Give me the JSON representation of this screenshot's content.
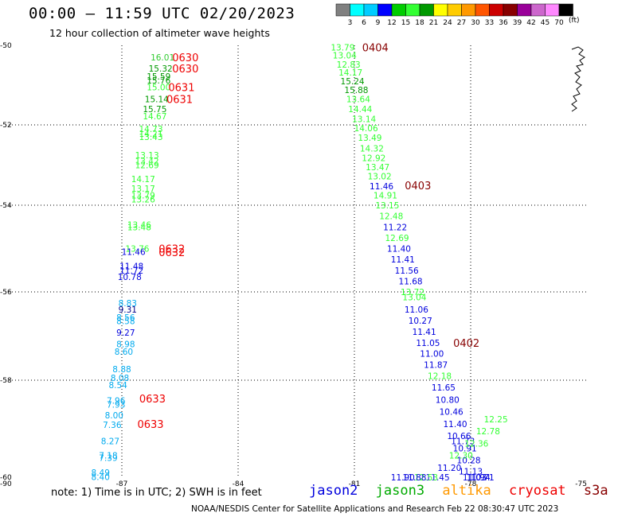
{
  "header": {
    "title": "00:00 – 11:59 UTC 02/20/2023",
    "subtitle": "12 hour collection of altimeter wave heights"
  },
  "footer": {
    "note": "note: 1) Time is in UTC; 2) SWH is in feet",
    "credit": "NOAA/NESDIS Center for Satellite Applications and Research    Feb 22 08:30:47 UTC 2023"
  },
  "satellites": [
    {
      "name": "jason2",
      "color": "#0000dd"
    },
    {
      "name": "jason3",
      "color": "#00aa00"
    },
    {
      "name": "altika",
      "color": "#ff9900"
    },
    {
      "name": "cryosat",
      "color": "#ee0000"
    },
    {
      "name": "s3a",
      "color": "#880000"
    }
  ],
  "colorbar": {
    "unit": "(ft)",
    "ticks": [
      "3",
      "6",
      "9",
      "12",
      "15",
      "18",
      "21",
      "24",
      "27",
      "30",
      "33",
      "36",
      "39",
      "42",
      "45",
      "70"
    ],
    "colors": [
      "#808080",
      "#00ffff",
      "#00ccff",
      "#0000ff",
      "#00cc00",
      "#33ff33",
      "#009900",
      "#ffff00",
      "#ffcc00",
      "#ff9900",
      "#ff5500",
      "#cc0000",
      "#880000",
      "#990099",
      "#cc66cc",
      "#ff88ff",
      "#000000"
    ]
  },
  "chart_data": {
    "type": "scatter",
    "xlim": [
      -90,
      -75
    ],
    "ylim": [
      -60,
      -50
    ],
    "x_ticks": [
      "-90",
      "-87",
      "-84",
      "-81",
      "-78",
      "-75"
    ],
    "y_ticks": [
      "-50",
      "-52",
      "-54",
      "-56",
      "-58",
      "-60"
    ],
    "points": [
      {
        "lon": -85.95,
        "lat": -50.3,
        "v": "16.01",
        "c": "#33cc33"
      },
      {
        "lon": -86.0,
        "lat": -50.58,
        "v": "15.32",
        "c": "#009900"
      },
      {
        "lon": -86.05,
        "lat": -50.78,
        "v": "15.59",
        "c": "#009900"
      },
      {
        "lon": -86.05,
        "lat": -50.88,
        "v": "15.76",
        "c": "#009900"
      },
      {
        "lon": -86.05,
        "lat": -51.05,
        "v": "15.00",
        "c": "#33ff33"
      },
      {
        "lon": -86.1,
        "lat": -51.35,
        "v": "15.14",
        "c": "#009900"
      },
      {
        "lon": -86.15,
        "lat": -51.6,
        "v": "15.75",
        "c": "#009900"
      },
      {
        "lon": -86.15,
        "lat": -51.78,
        "v": "14.67",
        "c": "#33ff33"
      },
      {
        "lon": -86.25,
        "lat": -52.1,
        "v": "14.73",
        "c": "#33ff33"
      },
      {
        "lon": -86.25,
        "lat": -52.22,
        "v": "14.21",
        "c": "#33ff33"
      },
      {
        "lon": -86.25,
        "lat": -52.3,
        "v": "13.43",
        "c": "#33ff33"
      },
      {
        "lon": -86.35,
        "lat": -52.75,
        "v": "13.13",
        "c": "#33ff33"
      },
      {
        "lon": -86.35,
        "lat": -52.9,
        "v": "13.42",
        "c": "#33ff33"
      },
      {
        "lon": -86.35,
        "lat": -53.0,
        "v": "12.69",
        "c": "#33ff33"
      },
      {
        "lon": -86.45,
        "lat": -53.35,
        "v": "14.17",
        "c": "#33ff33"
      },
      {
        "lon": -86.45,
        "lat": -53.58,
        "v": "13.17",
        "c": "#33ff33"
      },
      {
        "lon": -86.45,
        "lat": -53.75,
        "v": "13.79",
        "c": "#33ff33"
      },
      {
        "lon": -86.45,
        "lat": -53.85,
        "v": "13.26",
        "c": "#33ff33"
      },
      {
        "lon": -86.55,
        "lat": -54.45,
        "v": "13.46",
        "c": "#33ff33"
      },
      {
        "lon": -86.55,
        "lat": -54.5,
        "v": "13.48",
        "c": "#33ff33"
      },
      {
        "lon": -86.6,
        "lat": -55.0,
        "v": "13.76",
        "c": "#33ff33"
      },
      {
        "lon": -86.7,
        "lat": -55.07,
        "v": "11.46",
        "c": "#0000dd"
      },
      {
        "lon": -86.75,
        "lat": -55.4,
        "v": "11.48",
        "c": "#0000dd"
      },
      {
        "lon": -86.75,
        "lat": -55.5,
        "v": "11.72",
        "c": "#0000dd"
      },
      {
        "lon": -86.8,
        "lat": -55.65,
        "v": "10.78",
        "c": "#0000dd"
      },
      {
        "lon": -86.85,
        "lat": -56.25,
        "v": "8.83",
        "c": "#00aaee"
      },
      {
        "lon": -86.85,
        "lat": -56.4,
        "v": "9.31",
        "c": "#000088"
      },
      {
        "lon": -86.9,
        "lat": -56.58,
        "v": "8.56",
        "c": "#00aaee"
      },
      {
        "lon": -86.9,
        "lat": -56.66,
        "v": "8.58",
        "c": "#00aaee"
      },
      {
        "lon": -86.9,
        "lat": -56.92,
        "v": "9.27",
        "c": "#0000dd"
      },
      {
        "lon": -86.9,
        "lat": -57.18,
        "v": "8.98",
        "c": "#00aaee"
      },
      {
        "lon": -86.95,
        "lat": -57.35,
        "v": "8.60",
        "c": "#00aaee"
      },
      {
        "lon": -87.0,
        "lat": -57.75,
        "v": "8.88",
        "c": "#00aaee"
      },
      {
        "lon": -87.05,
        "lat": -57.95,
        "v": "8.08",
        "c": "#00aaee"
      },
      {
        "lon": -87.1,
        "lat": -58.1,
        "v": "8.54",
        "c": "#00aaee"
      },
      {
        "lon": -87.15,
        "lat": -58.42,
        "v": "7.96",
        "c": "#00aaee"
      },
      {
        "lon": -87.15,
        "lat": -58.5,
        "v": "7.93",
        "c": "#00aaee"
      },
      {
        "lon": -87.2,
        "lat": -58.72,
        "v": "8.00",
        "c": "#00aaee"
      },
      {
        "lon": -87.25,
        "lat": -58.92,
        "v": "7.36",
        "c": "#00aaee"
      },
      {
        "lon": -87.3,
        "lat": -59.25,
        "v": "8.27",
        "c": "#00aaee"
      },
      {
        "lon": -87.35,
        "lat": -59.55,
        "v": "7.18",
        "c": "#00aaee"
      },
      {
        "lon": -87.35,
        "lat": -59.6,
        "v": "7.39",
        "c": "#00aaee"
      },
      {
        "lon": -87.55,
        "lat": -59.9,
        "v": "8.49",
        "c": "#00aaee"
      },
      {
        "lon": -87.55,
        "lat": -59.99,
        "v": "8.40",
        "c": "#00aaee"
      },
      {
        "lon": -81.3,
        "lat": -50.05,
        "v": "13.79",
        "c": "#33ff33"
      },
      {
        "lon": -81.25,
        "lat": -50.25,
        "v": "13.04",
        "c": "#33ff33"
      },
      {
        "lon": -81.15,
        "lat": -50.48,
        "v": "12.83",
        "c": "#33ff33"
      },
      {
        "lon": -81.1,
        "lat": -50.68,
        "v": "14.17",
        "c": "#33ff33"
      },
      {
        "lon": -81.05,
        "lat": -50.9,
        "v": "15.24",
        "c": "#009900"
      },
      {
        "lon": -80.95,
        "lat": -51.12,
        "v": "15.88",
        "c": "#009900"
      },
      {
        "lon": -80.9,
        "lat": -51.35,
        "v": "13.64",
        "c": "#33ff33"
      },
      {
        "lon": -80.85,
        "lat": -51.6,
        "v": "14.44",
        "c": "#33ff33"
      },
      {
        "lon": -80.75,
        "lat": -51.85,
        "v": "13.14",
        "c": "#33ff33"
      },
      {
        "lon": -80.7,
        "lat": -52.08,
        "v": "14.06",
        "c": "#33ff33"
      },
      {
        "lon": -80.6,
        "lat": -52.32,
        "v": "13.49",
        "c": "#33ff33"
      },
      {
        "lon": -80.55,
        "lat": -52.58,
        "v": "14.32",
        "c": "#33ff33"
      },
      {
        "lon": -80.5,
        "lat": -52.82,
        "v": "12.92",
        "c": "#33ff33"
      },
      {
        "lon": -80.4,
        "lat": -53.05,
        "v": "13.47",
        "c": "#33ff33"
      },
      {
        "lon": -80.35,
        "lat": -53.28,
        "v": "13.02",
        "c": "#33ff33"
      },
      {
        "lon": -80.3,
        "lat": -53.52,
        "v": "11.46",
        "c": "#0000dd"
      },
      {
        "lon": -80.2,
        "lat": -53.75,
        "v": "14.91",
        "c": "#33ff33"
      },
      {
        "lon": -80.15,
        "lat": -54.0,
        "v": "13.15",
        "c": "#33ff33"
      },
      {
        "lon": -80.05,
        "lat": -54.25,
        "v": "12.48",
        "c": "#33ff33"
      },
      {
        "lon": -79.95,
        "lat": -54.5,
        "v": "11.22",
        "c": "#0000dd"
      },
      {
        "lon": -79.9,
        "lat": -54.75,
        "v": "12.69",
        "c": "#33ff33"
      },
      {
        "lon": -79.85,
        "lat": -55.0,
        "v": "11.40",
        "c": "#0000dd"
      },
      {
        "lon": -79.75,
        "lat": -55.25,
        "v": "11.41",
        "c": "#0000dd"
      },
      {
        "lon": -79.65,
        "lat": -55.5,
        "v": "11.56",
        "c": "#0000dd"
      },
      {
        "lon": -79.55,
        "lat": -55.75,
        "v": "11.68",
        "c": "#0000dd"
      },
      {
        "lon": -79.5,
        "lat": -56.0,
        "v": "13.72",
        "c": "#33ff33"
      },
      {
        "lon": -79.45,
        "lat": -56.12,
        "v": "13.04",
        "c": "#33ff33"
      },
      {
        "lon": -79.4,
        "lat": -56.4,
        "v": "11.06",
        "c": "#0000dd"
      },
      {
        "lon": -79.3,
        "lat": -56.65,
        "v": "10.27",
        "c": "#0000dd"
      },
      {
        "lon": -79.2,
        "lat": -56.9,
        "v": "11.41",
        "c": "#0000dd"
      },
      {
        "lon": -79.1,
        "lat": -57.15,
        "v": "11.05",
        "c": "#0000dd"
      },
      {
        "lon": -79.0,
        "lat": -57.4,
        "v": "11.00",
        "c": "#0000dd"
      },
      {
        "lon": -78.9,
        "lat": -57.65,
        "v": "11.87",
        "c": "#0000dd"
      },
      {
        "lon": -78.8,
        "lat": -57.9,
        "v": "12.18",
        "c": "#33ff33"
      },
      {
        "lon": -78.7,
        "lat": -58.15,
        "v": "11.65",
        "c": "#0000dd"
      },
      {
        "lon": -78.6,
        "lat": -58.4,
        "v": "10.80",
        "c": "#0000dd"
      },
      {
        "lon": -78.5,
        "lat": -58.65,
        "v": "10.46",
        "c": "#0000dd"
      },
      {
        "lon": -78.4,
        "lat": -58.9,
        "v": "11.40",
        "c": "#0000dd"
      },
      {
        "lon": -78.3,
        "lat": -59.15,
        "v": "10.66",
        "c": "#0000dd"
      },
      {
        "lon": -78.2,
        "lat": -59.25,
        "v": "11.73",
        "c": "#0000dd"
      },
      {
        "lon": -78.15,
        "lat": -59.4,
        "v": "10.91",
        "c": "#0000dd"
      },
      {
        "lon": -78.05,
        "lat": -59.65,
        "v": "10.28",
        "c": "#0000dd"
      },
      {
        "lon": -78.0,
        "lat": -59.88,
        "v": "11.13",
        "c": "#0000dd"
      },
      {
        "lon": -77.9,
        "lat": -60.1,
        "v": "11.03",
        "c": "#0000dd"
      },
      {
        "lon": -77.8,
        "lat": -60.35,
        "v": "11.94",
        "c": "#0000dd"
      },
      {
        "lon": -77.7,
        "lat": -60.55,
        "v": "10.71",
        "c": "#0000dd"
      },
      {
        "lon": -77.35,
        "lat": -58.8,
        "v": "12.25",
        "c": "#33ff33"
      },
      {
        "lon": -77.55,
        "lat": -59.05,
        "v": "12.78",
        "c": "#33ff33"
      },
      {
        "lon": -77.85,
        "lat": -59.3,
        "v": "12.36",
        "c": "#33ff33"
      },
      {
        "lon": -78.25,
        "lat": -59.55,
        "v": "12.30",
        "c": "#33ff33"
      },
      {
        "lon": -78.55,
        "lat": -59.8,
        "v": "11.20",
        "c": "#0000dd"
      },
      {
        "lon": -78.85,
        "lat": -60.0,
        "v": "11.45",
        "c": "#0000dd"
      },
      {
        "lon": -79.15,
        "lat": -60.2,
        "v": "12.53",
        "c": "#33ff33"
      },
      {
        "lon": -79.45,
        "lat": -60.4,
        "v": "11.88",
        "c": "#0000dd"
      },
      {
        "lon": -79.75,
        "lat": -60.6,
        "v": "11.90",
        "c": "#0000dd"
      }
    ],
    "time_labels": [
      {
        "lon": -85.7,
        "lat": -50.3,
        "t": "0630",
        "c": "#ee0000"
      },
      {
        "lon": -85.7,
        "lat": -50.58,
        "t": "0630",
        "c": "#ee0000"
      },
      {
        "lon": -85.8,
        "lat": -51.05,
        "t": "0631",
        "c": "#ee0000"
      },
      {
        "lon": -85.85,
        "lat": -51.35,
        "t": "0631",
        "c": "#ee0000"
      },
      {
        "lon": -86.05,
        "lat": -55.0,
        "t": "0632",
        "c": "#ee0000"
      },
      {
        "lon": -86.05,
        "lat": -55.08,
        "t": "0632",
        "c": "#ee0000"
      },
      {
        "lon": -86.55,
        "lat": -58.38,
        "t": "0633",
        "c": "#ee0000"
      },
      {
        "lon": -86.6,
        "lat": -58.9,
        "t": "0633",
        "c": "#ee0000"
      },
      {
        "lon": -80.8,
        "lat": -50.05,
        "t": "0404",
        "c": "#880000"
      },
      {
        "lon": -79.7,
        "lat": -53.5,
        "t": "0403",
        "c": "#880000"
      },
      {
        "lon": -78.45,
        "lat": -57.15,
        "t": "0402",
        "c": "#880000"
      }
    ]
  }
}
